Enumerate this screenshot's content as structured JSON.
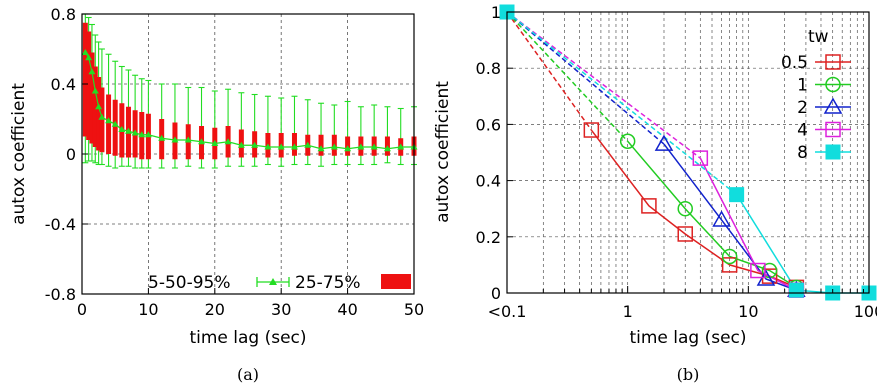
{
  "chart_data": [
    {
      "type": "line",
      "panel": "(a)",
      "title": "",
      "xlabel": "time lag (sec)",
      "ylabel": "autox coefficient",
      "xlim": [
        0,
        50
      ],
      "ylim": [
        -0.8,
        0.8
      ],
      "xticks": [
        "0",
        "10",
        "20",
        "30",
        "40",
        "50"
      ],
      "yticks": [
        "-0.8",
        "-0.4",
        "0",
        "0.4",
        "0.8"
      ],
      "legend_position": "bottom-right",
      "series": [
        {
          "name": "5-50-95%",
          "color": "#22dd22",
          "x": [
            0.5,
            1,
            1.5,
            2,
            2.5,
            3,
            4,
            5,
            6,
            7,
            8,
            9,
            10,
            12,
            14,
            16,
            18,
            20,
            22,
            24,
            26,
            28,
            30,
            32,
            34,
            36,
            38,
            40,
            42,
            44,
            46,
            48,
            50
          ],
          "median": [
            0.58,
            0.55,
            0.47,
            0.36,
            0.27,
            0.21,
            0.19,
            0.17,
            0.14,
            0.13,
            0.12,
            0.11,
            0.11,
            0.09,
            0.08,
            0.08,
            0.07,
            0.06,
            0.07,
            0.05,
            0.05,
            0.04,
            0.04,
            0.04,
            0.05,
            0.03,
            0.04,
            0.03,
            0.04,
            0.04,
            0.03,
            0.04,
            0.04
          ],
          "p5": [
            -0.05,
            -0.04,
            -0.04,
            -0.05,
            -0.06,
            -0.06,
            -0.07,
            -0.08,
            -0.07,
            -0.07,
            -0.08,
            -0.08,
            -0.08,
            -0.08,
            -0.08,
            -0.07,
            -0.08,
            -0.08,
            -0.07,
            -0.07,
            -0.07,
            -0.06,
            -0.07,
            -0.06,
            -0.06,
            -0.07,
            -0.06,
            -0.06,
            -0.06,
            -0.06,
            -0.05,
            -0.06,
            -0.06
          ],
          "p95": [
            0.8,
            0.78,
            0.74,
            0.68,
            0.64,
            0.6,
            0.57,
            0.53,
            0.5,
            0.48,
            0.45,
            0.43,
            0.42,
            0.4,
            0.4,
            0.38,
            0.38,
            0.36,
            0.37,
            0.35,
            0.34,
            0.33,
            0.32,
            0.33,
            0.31,
            0.29,
            0.28,
            0.3,
            0.27,
            0.28,
            0.27,
            0.26,
            0.27
          ]
        },
        {
          "name": "25-75%",
          "color": "#ee1111",
          "x": [
            0.5,
            1,
            1.5,
            2,
            2.5,
            3,
            4,
            5,
            6,
            7,
            8,
            9,
            10,
            12,
            14,
            16,
            18,
            20,
            22,
            24,
            26,
            28,
            30,
            32,
            34,
            36,
            38,
            40,
            42,
            44,
            46,
            48,
            50
          ],
          "p25": [
            0.1,
            0.08,
            0.06,
            0.04,
            0.02,
            0.01,
            0,
            -0.01,
            -0.02,
            -0.02,
            -0.02,
            -0.03,
            -0.03,
            -0.03,
            -0.03,
            -0.03,
            -0.03,
            -0.03,
            -0.02,
            -0.02,
            -0.02,
            -0.02,
            -0.02,
            -0.01,
            -0.01,
            -0.01,
            -0.01,
            -0.01,
            -0.01,
            -0.01,
            -0.01,
            -0.01,
            -0.01
          ],
          "p75": [
            0.75,
            0.7,
            0.58,
            0.5,
            0.44,
            0.38,
            0.34,
            0.31,
            0.29,
            0.27,
            0.25,
            0.24,
            0.23,
            0.2,
            0.18,
            0.17,
            0.16,
            0.15,
            0.16,
            0.14,
            0.13,
            0.12,
            0.12,
            0.12,
            0.11,
            0.11,
            0.11,
            0.1,
            0.1,
            0.1,
            0.1,
            0.09,
            0.1
          ]
        }
      ]
    },
    {
      "type": "line",
      "panel": "(b)",
      "title": "",
      "xlabel": "time lag (sec)",
      "ylabel": "autox coefficient",
      "xscale": "log",
      "xlim": [
        0.1,
        100
      ],
      "ylim": [
        0,
        1
      ],
      "xticks": [
        "<0.1",
        "1",
        "10",
        "100"
      ],
      "yticks": [
        "0",
        "0.2",
        "0.4",
        "0.6",
        "0.8",
        "1"
      ],
      "legend_title": "tw",
      "legend_position": "top-right",
      "series": [
        {
          "name": "0.5",
          "color": "#dd2222",
          "marker": "square-open",
          "x": [
            0.1,
            0.5,
            1.5,
            3,
            7,
            15,
            25
          ],
          "y": [
            1,
            0.58,
            0.31,
            0.21,
            0.1,
            0.06,
            0.02
          ]
        },
        {
          "name": "1",
          "color": "#22cc22",
          "marker": "circle-open",
          "x": [
            0.1,
            1,
            3,
            7,
            15,
            25
          ],
          "y": [
            1,
            0.54,
            0.3,
            0.13,
            0.08,
            0.02
          ]
        },
        {
          "name": "2",
          "color": "#1122cc",
          "marker": "triangle-open",
          "x": [
            0.1,
            2,
            6,
            14,
            25
          ],
          "y": [
            1,
            0.53,
            0.26,
            0.05,
            0.01
          ]
        },
        {
          "name": "4",
          "color": "#dd22dd",
          "marker": "square-open",
          "x": [
            0.1,
            4,
            12,
            25
          ],
          "y": [
            1,
            0.48,
            0.08,
            0.01
          ]
        },
        {
          "name": "8",
          "color": "#11dddd",
          "marker": "square-filled",
          "x": [
            0.1,
            8,
            25,
            50,
            100
          ],
          "y": [
            1,
            0.35,
            0.01,
            0,
            0
          ]
        }
      ]
    }
  ],
  "captions": {
    "left": "(a)",
    "right": "(b)"
  }
}
